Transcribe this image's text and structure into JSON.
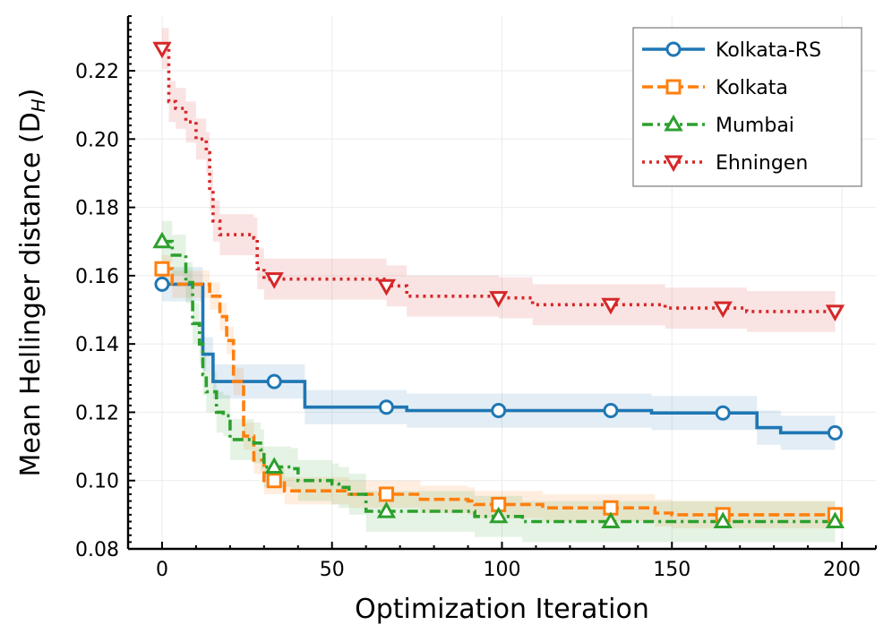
{
  "chart_data": {
    "type": "line",
    "xlabel": "Optimization Iteration",
    "ylabel": "Mean Hellinger distance (D",
    "ylabel_sub": "H",
    "ylabel_close": ")",
    "xlim": [
      -10,
      210
    ],
    "ylim": [
      0.08,
      0.236
    ],
    "xticks": [
      0,
      50,
      100,
      150,
      200
    ],
    "xtick_labels": [
      "0",
      "50",
      "100",
      "150",
      "200"
    ],
    "yticks": [
      0.08,
      0.1,
      0.12,
      0.14,
      0.16,
      0.18,
      0.2,
      0.22
    ],
    "ytick_labels": [
      "0.08",
      "0.10",
      "0.12",
      "0.14",
      "0.16",
      "0.18",
      "0.20",
      "0.22"
    ],
    "grid": true,
    "legend_position": "top-right",
    "series": [
      {
        "name": "Kolkata-RS",
        "color": "#1f77b4",
        "dash": "solid",
        "marker": "circle",
        "markers_x": [
          0,
          33,
          66,
          99,
          132,
          165,
          198
        ],
        "band": 0.005,
        "steps": [
          [
            0,
            0.1575
          ],
          [
            11,
            0.1575
          ],
          [
            12,
            0.137
          ],
          [
            15,
            0.129
          ],
          [
            42,
            0.129
          ],
          [
            42,
            0.1215
          ],
          [
            70,
            0.1215
          ],
          [
            72,
            0.1205
          ],
          [
            140,
            0.1205
          ],
          [
            144,
            0.1198
          ],
          [
            174,
            0.1198
          ],
          [
            175,
            0.1155
          ],
          [
            182,
            0.1155
          ],
          [
            182,
            0.114
          ],
          [
            198,
            0.114
          ]
        ]
      },
      {
        "name": "Kolkata",
        "color": "#ff7f0e",
        "dash": "dashed",
        "marker": "square",
        "markers_x": [
          0,
          33,
          66,
          99,
          132,
          165,
          198
        ],
        "band": 0.004,
        "steps": [
          [
            0,
            0.162
          ],
          [
            3,
            0.1575
          ],
          [
            13,
            0.1575
          ],
          [
            14,
            0.154
          ],
          [
            17,
            0.148
          ],
          [
            19,
            0.141
          ],
          [
            21,
            0.129
          ],
          [
            24,
            0.113
          ],
          [
            27,
            0.106
          ],
          [
            30,
            0.1
          ],
          [
            36,
            0.1
          ],
          [
            36,
            0.097
          ],
          [
            52,
            0.097
          ],
          [
            55,
            0.096
          ],
          [
            72,
            0.096
          ],
          [
            76,
            0.0945
          ],
          [
            90,
            0.094
          ],
          [
            92,
            0.093
          ],
          [
            110,
            0.093
          ],
          [
            112,
            0.092
          ],
          [
            140,
            0.092
          ],
          [
            145,
            0.0905
          ],
          [
            150,
            0.09
          ],
          [
            198,
            0.09
          ]
        ]
      },
      {
        "name": "Mumbai",
        "color": "#2ca02c",
        "dash": "dashdot",
        "marker": "triangle-up",
        "markers_x": [
          0,
          33,
          66,
          99,
          132,
          165,
          198
        ],
        "band": 0.006,
        "steps": [
          [
            0,
            0.17
          ],
          [
            3,
            0.166
          ],
          [
            6,
            0.166
          ],
          [
            7,
            0.158
          ],
          [
            9,
            0.146
          ],
          [
            11,
            0.14
          ],
          [
            12,
            0.131
          ],
          [
            13,
            0.126
          ],
          [
            16,
            0.12
          ],
          [
            18,
            0.119
          ],
          [
            20,
            0.112
          ],
          [
            22,
            0.112
          ],
          [
            27,
            0.111
          ],
          [
            29,
            0.109
          ],
          [
            30,
            0.104
          ],
          [
            35,
            0.104
          ],
          [
            38,
            0.1035
          ],
          [
            40,
            0.1
          ],
          [
            50,
            0.099
          ],
          [
            52,
            0.098
          ],
          [
            55,
            0.096
          ],
          [
            60,
            0.091
          ],
          [
            90,
            0.091
          ],
          [
            92,
            0.0895
          ],
          [
            100,
            0.0895
          ],
          [
            106,
            0.088
          ],
          [
            198,
            0.088
          ]
        ]
      },
      {
        "name": "Ehningen",
        "color": "#d62728",
        "dash": "dotted",
        "marker": "triangle-down",
        "markers_x": [
          0,
          33,
          66,
          99,
          132,
          165,
          198
        ],
        "band": 0.006,
        "steps": [
          [
            0,
            0.2265
          ],
          [
            2,
            0.211
          ],
          [
            4,
            0.209
          ],
          [
            7,
            0.205
          ],
          [
            10,
            0.2
          ],
          [
            13,
            0.196
          ],
          [
            14,
            0.185
          ],
          [
            15,
            0.176
          ],
          [
            17,
            0.172
          ],
          [
            27,
            0.171
          ],
          [
            28,
            0.162
          ],
          [
            30,
            0.159
          ],
          [
            64,
            0.159
          ],
          [
            66,
            0.157
          ],
          [
            69,
            0.157
          ],
          [
            72,
            0.154
          ],
          [
            97,
            0.154
          ],
          [
            99,
            0.1535
          ],
          [
            107,
            0.1535
          ],
          [
            109,
            0.1515
          ],
          [
            145,
            0.1515
          ],
          [
            148,
            0.1505
          ],
          [
            170,
            0.1505
          ],
          [
            172,
            0.1495
          ],
          [
            198,
            0.1495
          ]
        ]
      }
    ]
  }
}
